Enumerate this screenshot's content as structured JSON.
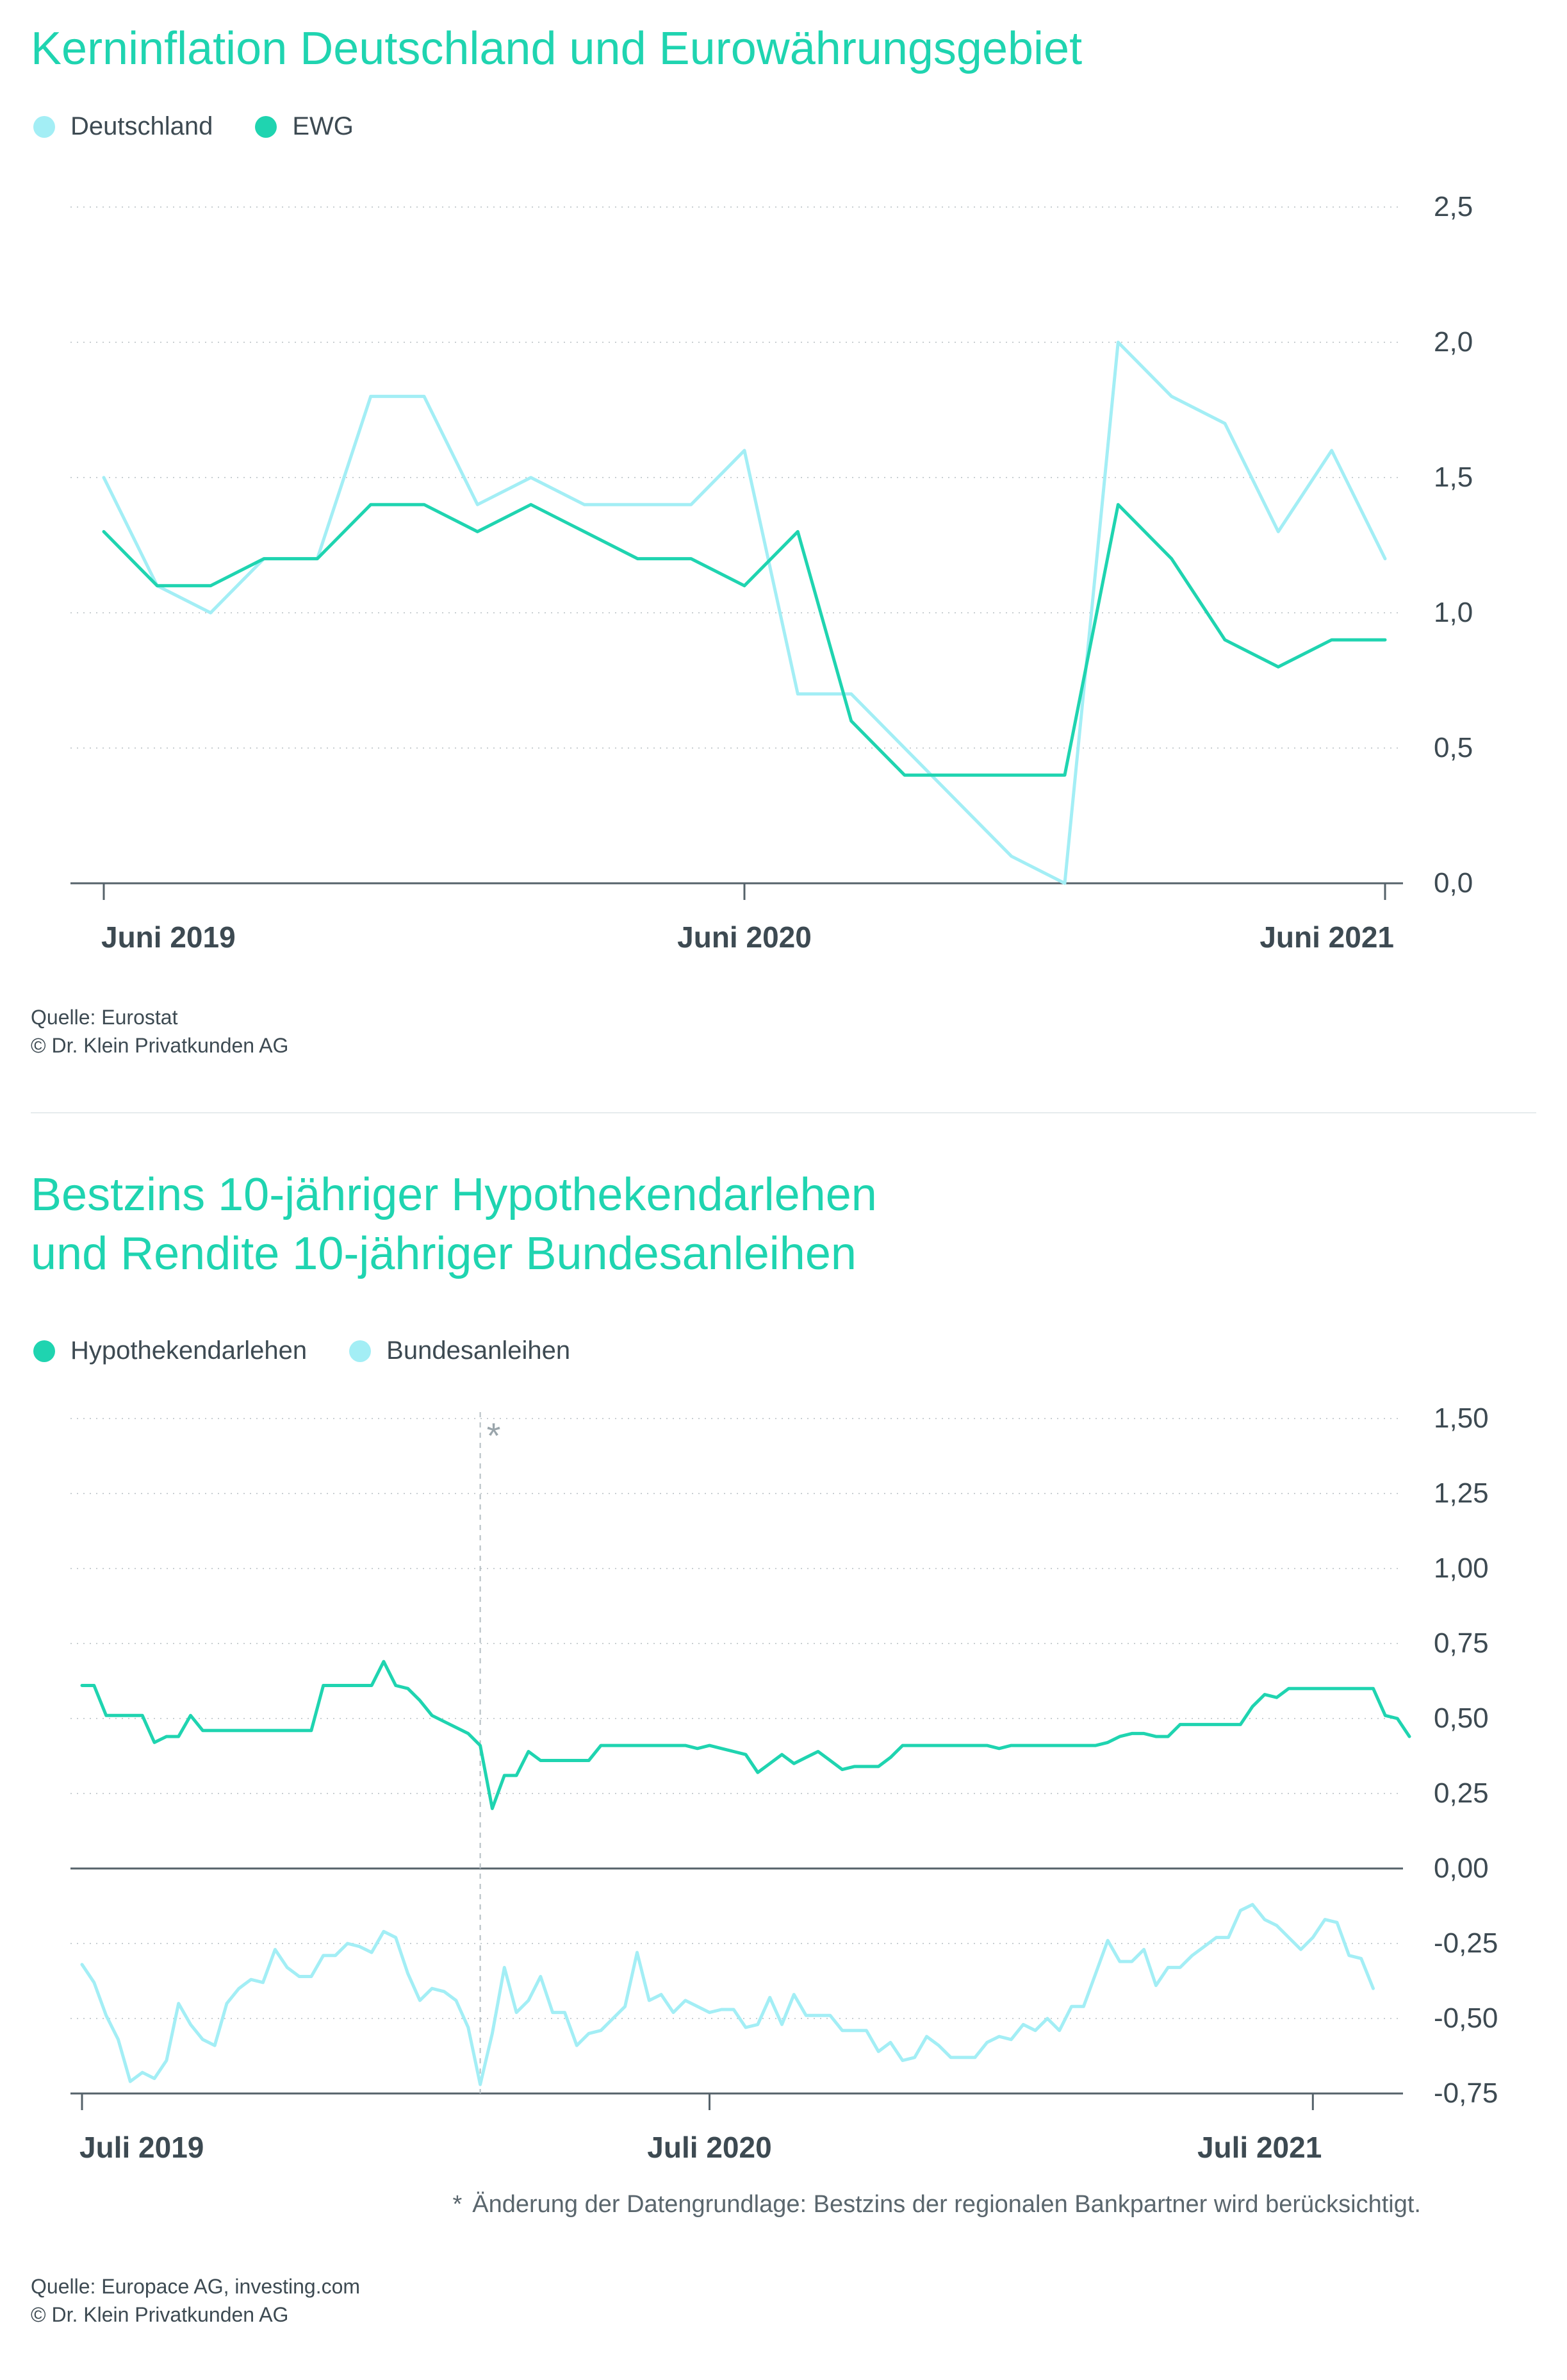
{
  "chart1": {
    "title": "Kerninflation Deutschland und Eurowährungsgebiet",
    "legend": [
      {
        "name": "Deutschland",
        "color": "#a3eef5"
      },
      {
        "name": "EWG",
        "color": "#1fd4b0"
      }
    ],
    "source_lines": [
      "Quelle: Eurostat",
      "© Dr. Klein Privatkunden AG"
    ]
  },
  "chart2": {
    "title_lines": [
      "Bestzins 10-jähriger Hypothekendarlehen",
      "und Rendite 10-jähriger Bundesanleihen"
    ],
    "legend": [
      {
        "name": "Hypothekendarlehen",
        "color": "#1fd4b0"
      },
      {
        "name": "Bundesanleihen",
        "color": "#a3eef5"
      }
    ],
    "marker_symbol": "*",
    "footnote": {
      "symbol": "*",
      "text": "Änderung der Datengrundlage: Bestzins der regionalen Bankpartner wird berücksichtigt."
    },
    "source_lines": [
      "Quelle: Europace AG, investing.com",
      "© Dr. Klein Privatkunden AG"
    ]
  },
  "chart_data": [
    {
      "type": "line",
      "title": "Kerninflation Deutschland und Eurowährungsgebiet",
      "x_ticks": [
        {
          "label": "Juni 2019",
          "index": 0
        },
        {
          "label": "Juni 2020",
          "index": 12
        },
        {
          "label": "Juni 2021",
          "index": 24
        }
      ],
      "y_ticks": [
        {
          "value": 0.0,
          "label": "0,0"
        },
        {
          "value": 0.5,
          "label": "0,5"
        },
        {
          "value": 1.0,
          "label": "1,0"
        },
        {
          "value": 1.5,
          "label": "1,5"
        },
        {
          "value": 2.0,
          "label": "2,0"
        },
        {
          "value": 2.5,
          "label": "2,5"
        }
      ],
      "ylim": [
        0,
        2.5
      ],
      "grid": "dotted",
      "series": [
        {
          "name": "Deutschland",
          "color": "#a3eef5",
          "values": [
            1.5,
            1.1,
            1.0,
            1.2,
            1.2,
            1.8,
            1.8,
            1.4,
            1.5,
            1.4,
            1.4,
            1.4,
            1.6,
            0.7,
            0.7,
            0.5,
            0.3,
            0.1,
            0.0,
            2.0,
            1.8,
            1.7,
            1.3,
            1.6,
            1.2
          ]
        },
        {
          "name": "EWG",
          "color": "#1fd4b0",
          "values": [
            1.3,
            1.1,
            1.1,
            1.2,
            1.2,
            1.4,
            1.4,
            1.3,
            1.4,
            1.3,
            1.2,
            1.2,
            1.1,
            1.3,
            0.6,
            0.4,
            0.4,
            0.4,
            0.4,
            1.4,
            1.2,
            0.9,
            0.8,
            0.9,
            0.9
          ]
        }
      ]
    },
    {
      "type": "line",
      "title": "Bestzins 10-jähriger Hypothekendarlehen und Rendite 10-jähriger Bundesanleihen",
      "x_ticks": [
        {
          "label": "Juli 2019",
          "index": 0
        },
        {
          "label": "Juli 2020",
          "index": 52
        },
        {
          "label": "Juli 2021",
          "index": 102
        }
      ],
      "y_ticks": [
        {
          "value": 1.5,
          "label": "1,50"
        },
        {
          "value": 1.25,
          "label": "1,25"
        },
        {
          "value": 1.0,
          "label": "1,00"
        },
        {
          "value": 0.75,
          "label": "0,75"
        },
        {
          "value": 0.5,
          "label": "0,50"
        },
        {
          "value": 0.25,
          "label": "0,25"
        },
        {
          "value": 0.0,
          "label": "0,00"
        },
        {
          "value": -0.25,
          "label": "-0,25"
        },
        {
          "value": -0.5,
          "label": "-0,50"
        },
        {
          "value": -0.75,
          "label": "-0,75"
        }
      ],
      "ylim": [
        -0.75,
        1.5
      ],
      "grid": "dotted",
      "marker_index": 33,
      "series": [
        {
          "name": "Hypothekendarlehen",
          "color": "#1fd4b0",
          "values": [
            0.61,
            0.61,
            0.51,
            0.51,
            0.51,
            0.51,
            0.42,
            0.44,
            0.44,
            0.51,
            0.46,
            0.46,
            0.46,
            0.46,
            0.46,
            0.46,
            0.46,
            0.46,
            0.46,
            0.46,
            0.61,
            0.61,
            0.61,
            0.61,
            0.61,
            0.69,
            0.61,
            0.6,
            0.56,
            0.51,
            0.49,
            0.47,
            0.45,
            0.41,
            0.2,
            0.31,
            0.31,
            0.39,
            0.36,
            0.36,
            0.36,
            0.36,
            0.36,
            0.41,
            0.41,
            0.41,
            0.41,
            0.41,
            0.41,
            0.41,
            0.41,
            0.4,
            0.41,
            0.4,
            0.39,
            0.38,
            0.32,
            0.35,
            0.38,
            0.35,
            0.37,
            0.39,
            0.36,
            0.33,
            0.34,
            0.34,
            0.34,
            0.37,
            0.41,
            0.41,
            0.41,
            0.41,
            0.41,
            0.41,
            0.41,
            0.41,
            0.4,
            0.41,
            0.41,
            0.41,
            0.41,
            0.41,
            0.41,
            0.41,
            0.41,
            0.42,
            0.44,
            0.45,
            0.45,
            0.44,
            0.44,
            0.48,
            0.48,
            0.48,
            0.48,
            0.48,
            0.48,
            0.54,
            0.58,
            0.57,
            0.6,
            0.6,
            0.6,
            0.6,
            0.6,
            0.6,
            0.6,
            0.6,
            0.51,
            0.5,
            0.44
          ]
        },
        {
          "name": "Bundesanleihen",
          "color": "#a3eef5",
          "values": [
            -0.32,
            -0.38,
            -0.49,
            -0.57,
            -0.71,
            -0.68,
            -0.7,
            -0.64,
            -0.45,
            -0.52,
            -0.57,
            -0.59,
            -0.45,
            -0.4,
            -0.37,
            -0.38,
            -0.27,
            -0.33,
            -0.36,
            -0.36,
            -0.29,
            -0.29,
            -0.25,
            -0.26,
            -0.28,
            -0.21,
            -0.23,
            -0.35,
            -0.44,
            -0.4,
            -0.41,
            -0.44,
            -0.53,
            -0.72,
            -0.55,
            -0.33,
            -0.48,
            -0.44,
            -0.36,
            -0.48,
            -0.48,
            -0.59,
            -0.55,
            -0.54,
            -0.5,
            -0.46,
            -0.28,
            -0.44,
            -0.42,
            -0.48,
            -0.44,
            -0.46,
            -0.48,
            -0.47,
            -0.47,
            -0.53,
            -0.52,
            -0.43,
            -0.52,
            -0.42,
            -0.49,
            -0.49,
            -0.49,
            -0.54,
            -0.54,
            -0.54,
            -0.61,
            -0.58,
            -0.64,
            -0.63,
            -0.56,
            -0.59,
            -0.63,
            -0.63,
            -0.63,
            -0.58,
            -0.56,
            -0.57,
            -0.52,
            -0.54,
            -0.5,
            -0.54,
            -0.46,
            -0.46,
            -0.35,
            -0.24,
            -0.31,
            -0.31,
            -0.27,
            -0.39,
            -0.33,
            -0.33,
            -0.29,
            -0.26,
            -0.23,
            -0.23,
            -0.14,
            -0.12,
            -0.17,
            -0.19,
            -0.23,
            -0.27,
            -0.23,
            -0.17,
            -0.18,
            -0.29,
            -0.3,
            -0.4
          ]
        }
      ]
    }
  ]
}
